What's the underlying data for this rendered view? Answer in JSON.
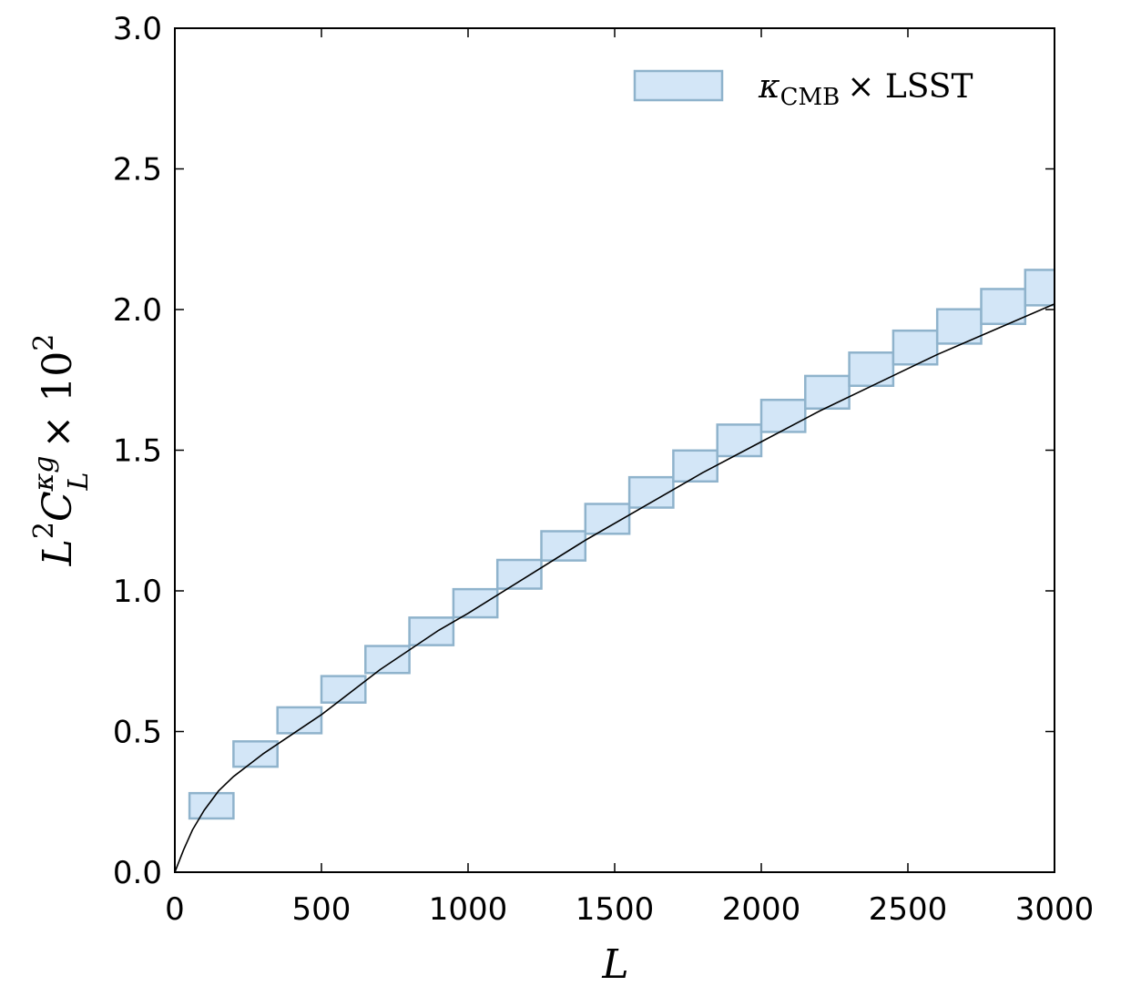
{
  "chart_data": {
    "type": "bar",
    "xlabel": "L",
    "ylabel": "L^2C_L^{κg} × 10^2",
    "ylabel_parts": {
      "base": "L",
      "sup1": "2",
      "c": "C",
      "sub": "L",
      "sup2": "κg",
      "times": "× 10",
      "exp": "2"
    },
    "xlim": [
      0,
      3000
    ],
    "ylim": [
      0.0,
      3.0
    ],
    "xticks": [
      0,
      500,
      1000,
      1500,
      2000,
      2500,
      3000
    ],
    "xtick_labels": [
      "0",
      "500",
      "1000",
      "1500",
      "2000",
      "2500",
      "3000"
    ],
    "yticks": [
      0.0,
      0.5,
      1.0,
      1.5,
      2.0,
      2.5,
      3.0
    ],
    "ytick_labels": [
      "0.0",
      "0.5",
      "1.0",
      "1.5",
      "2.0",
      "2.5",
      "3.0"
    ],
    "grid": false,
    "legend_position": "top-right",
    "series": [
      {
        "name": "κ_CMB × LSST",
        "legend_parts": {
          "kappa": "κ",
          "sub": "CMB",
          "rest": "× LSST"
        },
        "style": "error-boxes",
        "face_color": "#d3e6f7",
        "edge_color": "#8fb3cc",
        "bins": [
          {
            "x_low": 50,
            "x_high": 200,
            "y": 0.236,
            "y_err": 0.045
          },
          {
            "x_low": 200,
            "x_high": 350,
            "y": 0.42,
            "y_err": 0.045
          },
          {
            "x_low": 350,
            "x_high": 500,
            "y": 0.54,
            "y_err": 0.046
          },
          {
            "x_low": 500,
            "x_high": 650,
            "y": 0.65,
            "y_err": 0.047
          },
          {
            "x_low": 650,
            "x_high": 800,
            "y": 0.756,
            "y_err": 0.048
          },
          {
            "x_low": 800,
            "x_high": 950,
            "y": 0.856,
            "y_err": 0.049
          },
          {
            "x_low": 950,
            "x_high": 1100,
            "y": 0.956,
            "y_err": 0.05
          },
          {
            "x_low": 1100,
            "x_high": 1250,
            "y": 1.059,
            "y_err": 0.051
          },
          {
            "x_low": 1250,
            "x_high": 1400,
            "y": 1.16,
            "y_err": 0.052
          },
          {
            "x_low": 1400,
            "x_high": 1550,
            "y": 1.256,
            "y_err": 0.053
          },
          {
            "x_low": 1550,
            "x_high": 1700,
            "y": 1.35,
            "y_err": 0.054
          },
          {
            "x_low": 1700,
            "x_high": 1850,
            "y": 1.444,
            "y_err": 0.055
          },
          {
            "x_low": 1850,
            "x_high": 2000,
            "y": 1.535,
            "y_err": 0.056
          },
          {
            "x_low": 2000,
            "x_high": 2150,
            "y": 1.622,
            "y_err": 0.057
          },
          {
            "x_low": 2150,
            "x_high": 2300,
            "y": 1.706,
            "y_err": 0.058
          },
          {
            "x_low": 2300,
            "x_high": 2450,
            "y": 1.788,
            "y_err": 0.059
          },
          {
            "x_low": 2450,
            "x_high": 2600,
            "y": 1.865,
            "y_err": 0.06
          },
          {
            "x_low": 2600,
            "x_high": 2750,
            "y": 1.94,
            "y_err": 0.061
          },
          {
            "x_low": 2750,
            "x_high": 2900,
            "y": 2.011,
            "y_err": 0.062
          },
          {
            "x_low": 2900,
            "x_high": 3050,
            "y": 2.078,
            "y_err": 0.063
          }
        ]
      },
      {
        "name": "theory",
        "style": "line",
        "color": "#000000",
        "x": [
          0,
          30,
          60,
          100,
          150,
          200,
          250,
          300,
          400,
          500,
          600,
          700,
          800,
          900,
          1000,
          1200,
          1400,
          1600,
          1800,
          2000,
          2200,
          2400,
          2600,
          2800,
          3000
        ],
        "y": [
          0.0,
          0.08,
          0.15,
          0.22,
          0.29,
          0.34,
          0.38,
          0.42,
          0.49,
          0.56,
          0.64,
          0.72,
          0.79,
          0.86,
          0.92,
          1.05,
          1.18,
          1.3,
          1.42,
          1.53,
          1.64,
          1.74,
          1.84,
          1.93,
          2.02
        ]
      }
    ]
  }
}
